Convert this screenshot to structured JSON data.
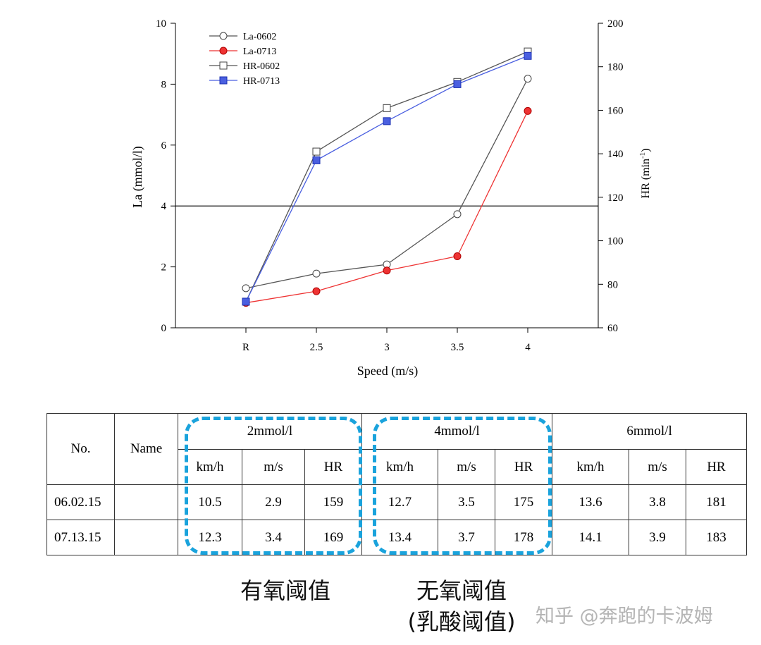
{
  "chart_data": {
    "type": "line",
    "categories": [
      "R",
      "2.5",
      "3",
      "3.5",
      "4"
    ],
    "xlabel": "Speed (m/s)",
    "ylabel_left": "La (mmol/l)",
    "ylabel_right": "HR (min",
    "ylabel_right_sup": "-1",
    "ylabel_right_end": ")",
    "ylim_left": [
      0,
      10
    ],
    "yticks_left": [
      0,
      2,
      4,
      6,
      8,
      10
    ],
    "ylim_right": [
      60,
      200
    ],
    "yticks_right": [
      60,
      80,
      100,
      120,
      140,
      160,
      180,
      200
    ],
    "reference_line_left": 4,
    "legend_position": "top-left",
    "series": [
      {
        "name": "La-0602",
        "axis": "left",
        "values": [
          1.3,
          1.78,
          2.08,
          3.73,
          8.18
        ],
        "color": "#555555",
        "marker": "circle-open"
      },
      {
        "name": "La-0713",
        "axis": "left",
        "values": [
          0.82,
          1.2,
          1.88,
          2.35,
          7.12
        ],
        "color": "#ee3333",
        "marker": "circle-filled"
      },
      {
        "name": "HR-0602",
        "axis": "right",
        "values": [
          72,
          141,
          161,
          173,
          187
        ],
        "color": "#555555",
        "marker": "square-open"
      },
      {
        "name": "HR-0713",
        "axis": "right",
        "values": [
          72,
          137,
          155,
          172,
          185
        ],
        "color": "#4a5fe0",
        "marker": "square-filled"
      }
    ]
  },
  "table": {
    "no_header": "No.",
    "name_header": "Name",
    "group_headers": [
      "2mmol/l",
      "4mmol/l",
      "6mmol/l"
    ],
    "sub_headers": [
      "km/h",
      "m/s",
      "HR"
    ],
    "rows": [
      {
        "no": "06.02.15",
        "name": "",
        "values": [
          "10.5",
          "2.9",
          "159",
          "12.7",
          "3.5",
          "175",
          "13.6",
          "3.8",
          "181"
        ]
      },
      {
        "no": "07.13.15",
        "name": "",
        "values": [
          "12.3",
          "3.4",
          "169",
          "13.4",
          "3.7",
          "178",
          "14.1",
          "3.9",
          "183"
        ]
      }
    ]
  },
  "captions": {
    "aerobic": "有氧阈值",
    "anaerobic_line1": "无氧阈值",
    "anaerobic_line2": "(乳酸阈值)"
  },
  "watermark": "知乎 @奔跑的卡波姆",
  "colors": {
    "highlight_box": "#1aa3dc"
  }
}
